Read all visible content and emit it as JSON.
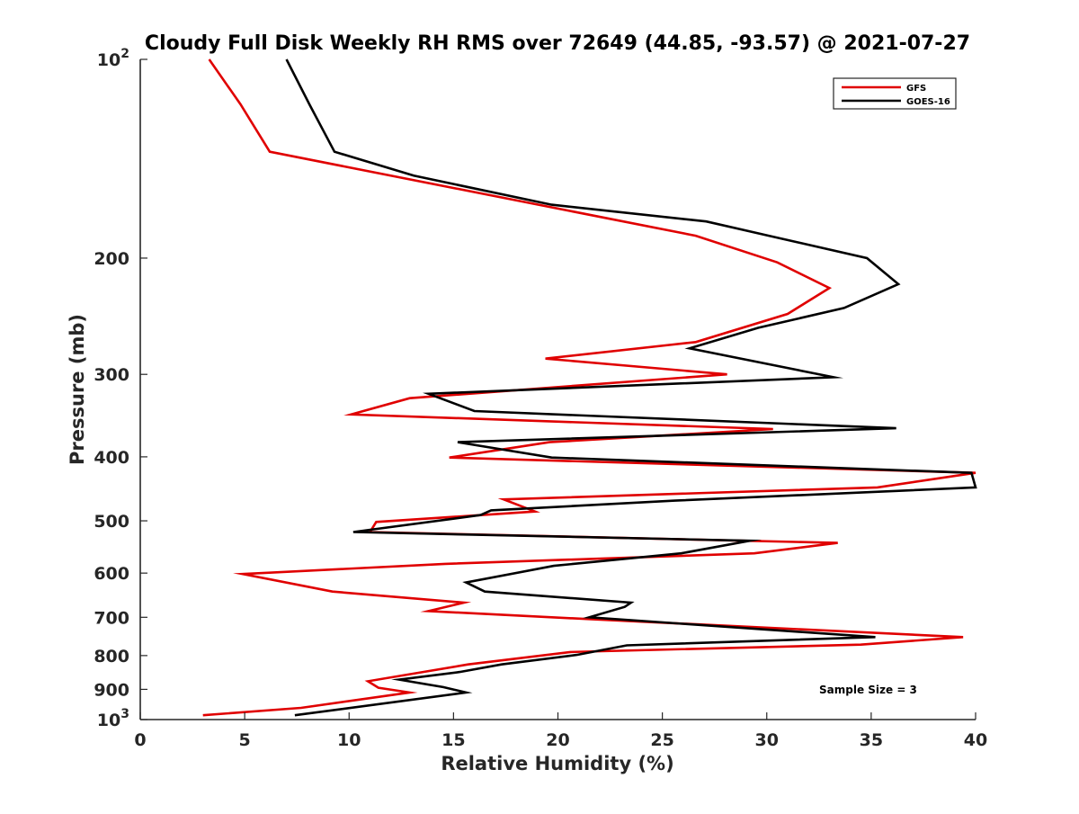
{
  "chart_data": {
    "type": "line",
    "title": "Cloudy Full Disk Weekly RH RMS over 72649 (44.85, -93.57) @ 2021-07-27",
    "xlabel": "Relative Humidity (%)",
    "ylabel": "Pressure (mb)",
    "xlim": [
      0,
      40
    ],
    "ylim": [
      100,
      1000
    ],
    "y_scale": "log",
    "y_reversed": true,
    "grid": false,
    "legend_position": "top-right",
    "x_ticks": [
      "0",
      "5",
      "10",
      "15",
      "20",
      "25",
      "30",
      "35",
      "40"
    ],
    "y_ticks": [
      {
        "value": 100,
        "base": "10",
        "exp": "2"
      },
      {
        "value": 200,
        "label": "200"
      },
      {
        "value": 300,
        "label": "300"
      },
      {
        "value": 400,
        "label": "400"
      },
      {
        "value": 500,
        "label": "500"
      },
      {
        "value": 600,
        "label": "600"
      },
      {
        "value": 700,
        "label": "700"
      },
      {
        "value": 800,
        "label": "800"
      },
      {
        "value": 900,
        "label": "900"
      },
      {
        "value": 1000,
        "base": "10",
        "exp": "3"
      }
    ],
    "annotation": "Sample Size = 3",
    "series": [
      {
        "name": "GFS",
        "color": "#e00000",
        "points": [
          [
            3.3,
            100
          ],
          [
            4.8,
            117
          ],
          [
            6.2,
            138
          ],
          [
            26.6,
            185
          ],
          [
            30.5,
            203
          ],
          [
            33.0,
            222
          ],
          [
            31.0,
            243
          ],
          [
            26.6,
            268
          ],
          [
            19.4,
            284
          ],
          [
            28.1,
            300
          ],
          [
            12.9,
            326
          ],
          [
            10.1,
            345
          ],
          [
            30.3,
            363
          ],
          [
            19.6,
            380
          ],
          [
            14.8,
            401
          ],
          [
            40.0,
            423
          ],
          [
            35.3,
            445
          ],
          [
            17.4,
            464
          ],
          [
            18.9,
            484
          ],
          [
            11.3,
            502
          ],
          [
            11.0,
            520
          ],
          [
            33.4,
            540
          ],
          [
            29.4,
            560
          ],
          [
            14.6,
            581
          ],
          [
            4.9,
            602
          ],
          [
            9.2,
            640
          ],
          [
            15.5,
            665
          ],
          [
            13.8,
            685
          ],
          [
            21.7,
            705
          ],
          [
            39.4,
            750
          ],
          [
            34.5,
            770
          ],
          [
            20.6,
            790
          ],
          [
            15.7,
            825
          ],
          [
            10.9,
            875
          ],
          [
            11.4,
            895
          ],
          [
            12.9,
            910
          ],
          [
            7.7,
            960
          ],
          [
            3.0,
            985
          ]
        ]
      },
      {
        "name": "GOES-16",
        "color": "#000000",
        "points": [
          [
            7.0,
            100
          ],
          [
            8.1,
            117
          ],
          [
            9.3,
            138
          ],
          [
            13.1,
            150
          ],
          [
            19.7,
            166
          ],
          [
            27.1,
            176
          ],
          [
            30.1,
            185
          ],
          [
            34.8,
            200
          ],
          [
            36.3,
            219
          ],
          [
            33.7,
            238
          ],
          [
            29.6,
            255
          ],
          [
            26.3,
            274
          ],
          [
            33.2,
            303
          ],
          [
            13.8,
            321
          ],
          [
            16.0,
            341
          ],
          [
            36.2,
            362
          ],
          [
            15.2,
            380
          ],
          [
            19.7,
            401
          ],
          [
            39.8,
            423
          ],
          [
            40.0,
            445
          ],
          [
            25.6,
            466
          ],
          [
            16.8,
            482
          ],
          [
            16.3,
            490
          ],
          [
            10.2,
            520
          ],
          [
            29.2,
            536
          ],
          [
            25.9,
            560
          ],
          [
            19.8,
            585
          ],
          [
            15.6,
            620
          ],
          [
            16.5,
            640
          ],
          [
            23.5,
            665
          ],
          [
            23.2,
            675
          ],
          [
            21.5,
            700
          ],
          [
            35.2,
            750
          ],
          [
            23.3,
            772
          ],
          [
            20.9,
            798
          ],
          [
            17.3,
            825
          ],
          [
            15.3,
            847
          ],
          [
            12.4,
            870
          ],
          [
            14.5,
            893
          ],
          [
            15.6,
            910
          ],
          [
            7.4,
            985
          ]
        ]
      }
    ]
  }
}
